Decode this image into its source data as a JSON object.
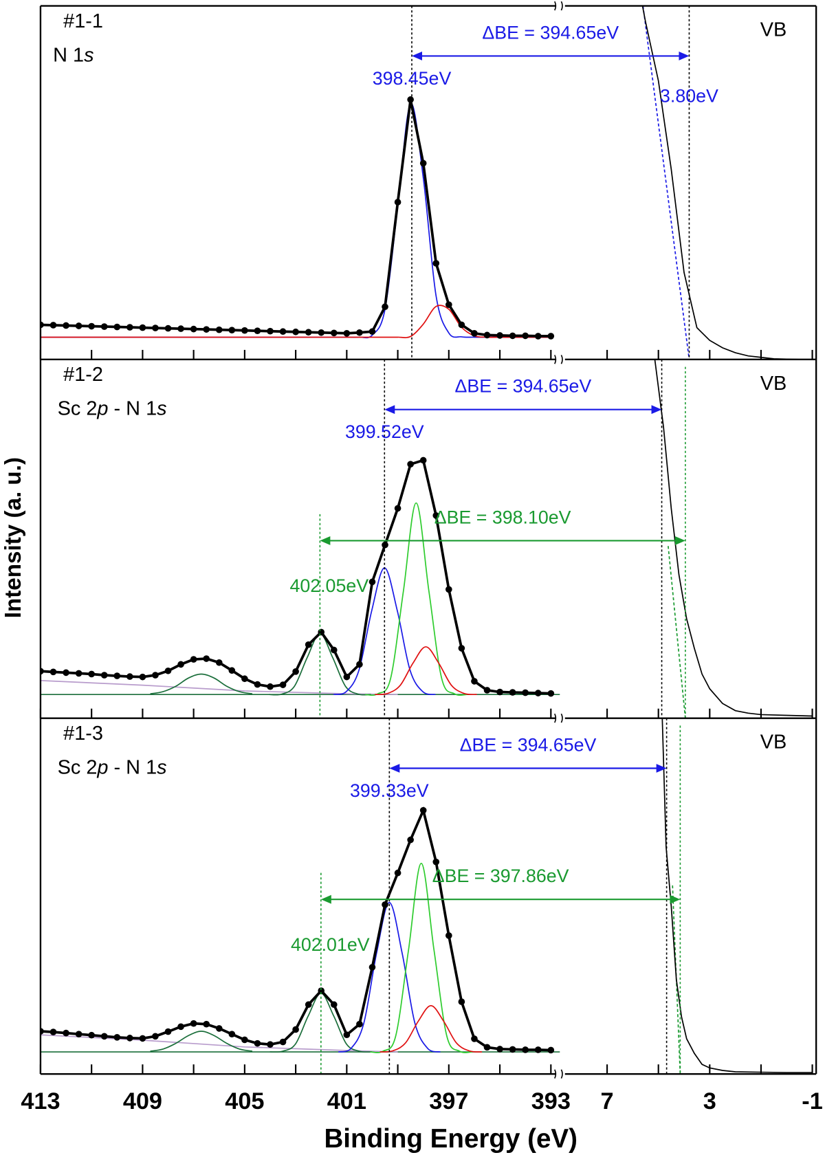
{
  "chart_data": {
    "type": "line",
    "xlabel": "Binding Energy (eV)",
    "ylabel": "Intensity (a. u.)",
    "xlim": [
      413,
      392.65
    ],
    "xticks": [
      413,
      409,
      405,
      401,
      397,
      393
    ],
    "xminor": [
      411,
      407,
      403,
      399,
      395
    ],
    "x2lim": [
      8.7,
      -1.15
    ],
    "x2ticks": [
      7,
      3,
      -1
    ],
    "x2minor": [
      5,
      1
    ],
    "x": [
      413,
      412.5,
      412,
      411.5,
      411,
      410.5,
      410,
      409.5,
      409,
      408.5,
      408,
      407.5,
      407,
      406.5,
      406,
      405.5,
      405,
      404.5,
      404,
      403.5,
      403,
      402.5,
      402,
      401.5,
      401,
      400.5,
      400,
      399.5,
      399,
      398.5,
      398,
      397.5,
      397,
      396.5,
      396,
      395.5,
      395,
      394.5,
      394,
      393.5,
      393
    ],
    "panels": [
      {
        "label": "#1-1",
        "region": [
          "N 1",
          "s"
        ],
        "vb_label": "VB",
        "ylim": [
          0,
          100
        ],
        "series": [
          {
            "style": "curve",
            "color": "#1a1ae6",
            "values": [
              6.3,
              6.3,
              6.3,
              6.3,
              6.3,
              6.3,
              6.3,
              6.3,
              6.3,
              6.3,
              6.3,
              6.3,
              6.3,
              6.3,
              6.3,
              6.3,
              6.3,
              6.3,
              6.3,
              6.3,
              6.3,
              6.3,
              6.3,
              6.3,
              6.3,
              6.3,
              6.9,
              14.2,
              43.3,
              72.3,
              51.3,
              18.0,
              7.5,
              6.4,
              6.3,
              6.3,
              6.3,
              6.3,
              6.3,
              6.3,
              6.3
            ]
          },
          {
            "style": "curve",
            "color": "#e01010",
            "values": [
              6.3,
              6.3,
              6.3,
              6.3,
              6.3,
              6.3,
              6.3,
              6.3,
              6.3,
              6.3,
              6.3,
              6.3,
              6.3,
              6.3,
              6.3,
              6.3,
              6.3,
              6.3,
              6.3,
              6.3,
              6.3,
              6.3,
              6.3,
              6.3,
              6.3,
              6.3,
              6.3,
              6.3,
              6.3,
              6.5,
              10.0,
              15.0,
              14.2,
              9.1,
              6.7,
              6.3,
              6.3,
              6.3,
              6.3,
              6.3,
              6.3
            ]
          },
          {
            "style": "dots",
            "color": "#000000",
            "values": [
              9.8,
              9.7,
              9.6,
              9.5,
              9.4,
              9.3,
              9.2,
              9.1,
              9.0,
              8.9,
              8.8,
              8.7,
              8.6,
              8.5,
              8.4,
              8.3,
              8.2,
              8.1,
              8.0,
              7.9,
              7.8,
              7.7,
              7.6,
              7.5,
              7.4,
              7.6,
              7.9,
              14.9,
              44.5,
              73.5,
              55.5,
              27.2,
              15.5,
              9.8,
              7.4,
              6.9,
              6.8,
              6.7,
              6.7,
              6.6,
              6.6
            ]
          }
        ],
        "vb_series": [
          {
            "style": "dashed",
            "color": "#1a1ae6",
            "x": [
              5.6,
              3.8
            ],
            "values": [
              100,
              0
            ]
          },
          {
            "style": "line",
            "color": "#000000",
            "x": [
              5.62,
              5.5,
              5,
              4.5,
              4,
              3.5,
              3,
              2.5,
              2,
              1.5,
              1,
              0.5,
              0,
              -0.5,
              -1
            ],
            "values": [
              100,
              95.4,
              78.8,
              53.8,
              24.6,
              9.0,
              5.4,
              3.3,
              1.9,
              1.0,
              0.6,
              0.2,
              0.1,
              0,
              0
            ]
          }
        ],
        "n1s_line": {
          "value": 398.45,
          "color": "#000000",
          "label": "398.45eV"
        },
        "vb_edge": {
          "value": 3.8,
          "color": "#000000",
          "label": "3.80eV"
        },
        "delta": {
          "label": "ΔBE = 394.65eV",
          "color": "#1a1ae6"
        }
      },
      {
        "label": "#1-2",
        "region": [
          "Sc 2",
          "p",
          " - N 1",
          "s"
        ],
        "vb_label": "VB",
        "ylim": [
          0,
          100
        ],
        "baseline": {
          "value": 6.6,
          "color": "#1a6e3a"
        },
        "series": [
          {
            "style": "line",
            "color": "#b89ccc",
            "x": [
              413,
              409,
              405,
              401,
              399
            ],
            "values": [
              10.5,
              9.2,
              7.6,
              6.8,
              6.6
            ]
          },
          {
            "style": "curve",
            "color": "#1a6e3a",
            "x": [
              408.7,
              408.2,
              407.7,
              407.2,
              406.7,
              406.2,
              405.7,
              405.2,
              404.7
            ],
            "values": [
              6.8,
              7.4,
              8.9,
              11.2,
              12.3,
              11.2,
              8.9,
              7.4,
              6.8
            ]
          },
          {
            "style": "curve",
            "color": "#1a6e3a",
            "x": [
              404.05,
              403.55,
              403.05,
              402.55,
              402.05,
              401.55,
              401.05,
              400.55,
              400.05
            ],
            "values": [
              6.6,
              6.7,
              8.9,
              16.9,
              23.6,
              16.9,
              8.9,
              6.7,
              6.6
            ]
          },
          {
            "style": "curve",
            "color": "#1a1ae6",
            "x": [
              401.52,
              401.02,
              400.52,
              400.02,
              399.52,
              399.02,
              398.52,
              398.02,
              397.52
            ],
            "values": [
              6.6,
              7.4,
              13.4,
              30.0,
              41.9,
              30.0,
              13.4,
              7.4,
              6.6
            ]
          },
          {
            "style": "curve",
            "color": "#2ecc2e",
            "x": [
              400.28,
              399.78,
              399.28,
              398.78,
              398.28,
              397.78,
              397.28,
              396.78,
              396.28
            ],
            "values": [
              6.6,
              6.8,
              11.1,
              35.4,
              60.0,
              35.4,
              11.1,
              6.8,
              6.6
            ]
          },
          {
            "style": "curve",
            "color": "#e01010",
            "x": [
              399.9,
              399.4,
              398.9,
              398.4,
              397.9,
              397.4,
              396.9,
              396.4,
              395.9
            ],
            "values": [
              6.6,
              6.9,
              9.2,
              15.4,
              19.9,
              15.4,
              9.2,
              6.9,
              6.6
            ]
          },
          {
            "style": "dots",
            "color": "#000000",
            "values": [
              13.1,
              12.9,
              12.7,
              12.5,
              12.3,
              12.0,
              11.8,
              11.6,
              11.5,
              12.0,
              13.2,
              15.0,
              16.4,
              16.6,
              15.5,
              13.3,
              11.0,
              9.4,
              8.8,
              9.3,
              13.0,
              20.5,
              24.0,
              19.0,
              11.5,
              15.0,
              38.0,
              48.3,
              58.5,
              70.8,
              71.9,
              56.5,
              35.9,
              19.5,
              10.3,
              7.8,
              7.3,
              7.2,
              7.1,
              7.0,
              6.9
            ]
          }
        ],
        "vb_series": [
          {
            "style": "dashed",
            "color": "#1a9a30",
            "x": [
              4.62,
              3.95
            ],
            "values": [
              48,
              0
            ]
          },
          {
            "style": "line",
            "color": "#000000",
            "x": [
              5.14,
              4.8,
              4.5,
              4.2,
              3.9,
              3.6,
              3.3,
              3,
              2.5,
              2,
              1.5,
              1,
              0,
              -1
            ],
            "values": [
              100,
              81.1,
              58.5,
              40.0,
              27.7,
              19.5,
              12.3,
              8.2,
              4.1,
              2.1,
              1.4,
              1.0,
              0.8,
              0.6
            ]
          }
        ],
        "n1s_line": {
          "value": 399.52,
          "color": "#000000",
          "label": "399.52eV"
        },
        "vb_edge": {
          "value": 4.87,
          "color": "#000000"
        },
        "delta": {
          "label": "ΔBE = 394.65eV",
          "color": "#1a1ae6"
        },
        "sc_line": {
          "value": 402.05,
          "color": "#1a9a30",
          "label": "402.05eV"
        },
        "sc_edge": {
          "value": 3.95,
          "color": "#1a9a30"
        },
        "sc_delta": {
          "label": "ΔBE = 398.10eV",
          "color": "#1a9a30"
        }
      },
      {
        "label": "#1-3",
        "region": [
          "Sc 2",
          "p",
          " - N 1",
          "s"
        ],
        "vb_label": "VB",
        "ylim": [
          0,
          100
        ],
        "baseline": {
          "value": 6.2,
          "color": "#1a6e3a"
        },
        "series": [
          {
            "style": "line",
            "color": "#b89ccc",
            "x": [
              413,
              409,
              405,
              401,
              399
            ],
            "values": [
              11.0,
              9.5,
              7.6,
              6.6,
              6.2
            ]
          },
          {
            "style": "curve",
            "color": "#1a6e3a",
            "x": [
              408.7,
              408.2,
              407.7,
              407.2,
              406.7,
              406.2,
              405.7,
              405.2,
              404.7
            ],
            "values": [
              6.4,
              7.0,
              8.6,
              10.8,
              12.0,
              10.8,
              8.6,
              7.0,
              6.4
            ]
          },
          {
            "style": "curve",
            "color": "#1a6e3a",
            "x": [
              404.01,
              403.51,
              403.01,
              402.51,
              402.01,
              401.51,
              401.01,
              400.51,
              400.01
            ],
            "values": [
              6.2,
              6.4,
              8.4,
              16.3,
              22.7,
              16.3,
              8.4,
              6.4,
              6.2
            ]
          },
          {
            "style": "curve",
            "color": "#1a1ae6",
            "x": [
              401.33,
              400.83,
              400.33,
              399.83,
              399.33,
              398.83,
              398.33,
              397.83,
              397.33
            ],
            "values": [
              6.2,
              7.2,
              14.3,
              34.0,
              48.2,
              34.0,
              14.3,
              7.2,
              6.2
            ]
          },
          {
            "style": "curve",
            "color": "#2ecc2e",
            "x": [
              400.08,
              399.58,
              399.08,
              398.58,
              398.08,
              397.58,
              397.08,
              396.58,
              396.08
            ],
            "values": [
              6.2,
              6.4,
              10.7,
              34.8,
              59.2,
              34.8,
              10.7,
              6.4,
              6.2
            ]
          },
          {
            "style": "curve",
            "color": "#e01010",
            "x": [
              399.7,
              399.2,
              398.7,
              398.2,
              397.7,
              397.2,
              396.7,
              396.2,
              395.7
            ],
            "values": [
              6.2,
              6.5,
              8.7,
              14.8,
              19.2,
              14.8,
              8.7,
              6.5,
              6.2
            ]
          },
          {
            "style": "dots",
            "color": "#000000",
            "values": [
              12.0,
              11.8,
              11.5,
              11.2,
              10.9,
              10.6,
              10.3,
              10.1,
              10.0,
              10.6,
              11.9,
              13.3,
              14.2,
              14.0,
              12.8,
              11.2,
              9.6,
              8.6,
              8.3,
              9.0,
              12.5,
              19.5,
              23.4,
              19.5,
              11.0,
              14.0,
              30.0,
              47.6,
              56.5,
              65.8,
              74.1,
              59.6,
              38.9,
              20.3,
              9.9,
              7.5,
              7.0,
              6.9,
              6.8,
              6.8,
              6.7
            ]
          }
        ],
        "vb_series": [
          {
            "style": "dashed",
            "color": "#1a9a30",
            "x": [
              4.45,
              4.15
            ],
            "values": [
              53,
              0
            ]
          },
          {
            "style": "line",
            "color": "#000000",
            "x": [
              4.85,
              4.7,
              4.5,
              4.3,
              4.1,
              3.9,
              3.6,
              3.3,
              3,
              2.5,
              2,
              1,
              0,
              -1
            ],
            "values": [
              100,
              63.8,
              47.2,
              26.5,
              16.1,
              9.9,
              5.8,
              2.7,
              1.7,
              1.0,
              0.6,
              0.5,
              0.4,
              0.4
            ]
          }
        ],
        "n1s_line": {
          "value": 399.33,
          "color": "#000000",
          "label": "399.33eV"
        },
        "vb_edge": {
          "value": 4.68,
          "color": "#000000"
        },
        "delta": {
          "label": "ΔBE = 394.65eV",
          "color": "#1a1ae6"
        },
        "sc_line": {
          "value": 402.01,
          "color": "#1a9a30",
          "label": "402.01eV"
        },
        "sc_edge": {
          "value": 4.15,
          "color": "#1a9a30"
        },
        "sc_delta": {
          "label": "ΔBE = 397.86eV",
          "color": "#1a9a30"
        }
      }
    ]
  }
}
